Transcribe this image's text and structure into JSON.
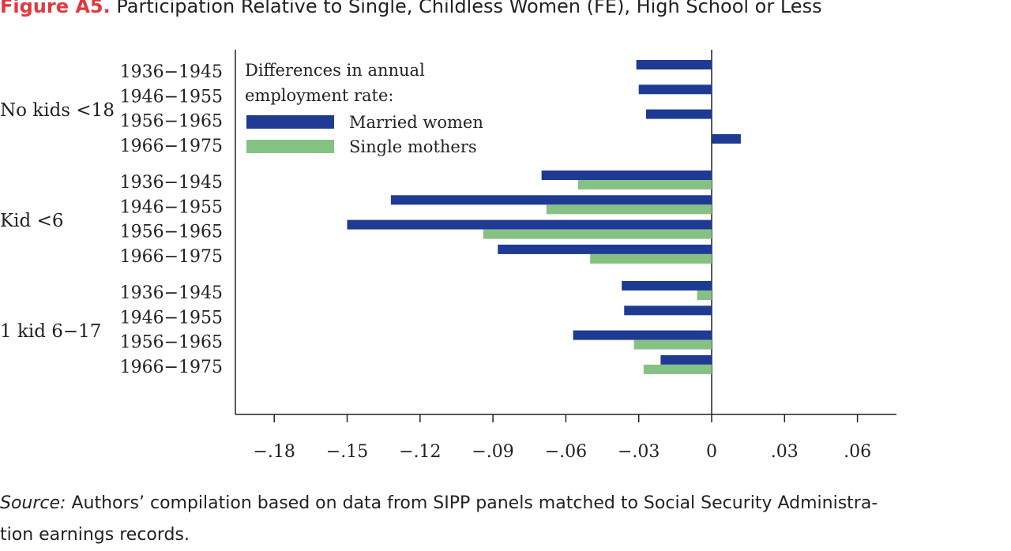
{
  "title": {
    "label": "Figure A5.",
    "text": "Participation Relative to Single, Childless Women (FE), High School or Less"
  },
  "source": {
    "label": "Source:",
    "text": "Authors’ compilation based on data from SIPP panels matched to Social Security Administra-",
    "text2": "tion earnings records."
  },
  "chart_data": {
    "type": "bar",
    "orientation": "horizontal",
    "legend": {
      "title_line1": "Differences in annual",
      "title_line2": "employment rate:",
      "placement": "top-left"
    },
    "xlim": [
      -0.21,
      0.08
    ],
    "xticks": [
      -0.18,
      -0.15,
      -0.12,
      -0.09,
      -0.06,
      -0.03,
      0,
      0.03,
      0.06
    ],
    "xtick_labels": [
      "−.18",
      "−.15",
      "−.12",
      "−.09",
      "−.06",
      "−.03",
      "0",
      ".03",
      ".06"
    ],
    "groups": [
      {
        "label": "No kids <18",
        "categories": [
          "1936−1945",
          "1946−1955",
          "1956−1965",
          "1966−1975"
        ],
        "married_women": [
          -0.031,
          -0.03,
          -0.027,
          0.012
        ],
        "single_mothers": [
          null,
          null,
          null,
          null
        ]
      },
      {
        "label": "Kid <6",
        "categories": [
          "1936−1945",
          "1946−1955",
          "1956−1965",
          "1966−1975"
        ],
        "married_women": [
          -0.07,
          -0.132,
          -0.15,
          -0.088
        ],
        "single_mothers": [
          -0.055,
          -0.068,
          -0.094,
          -0.05
        ]
      },
      {
        "label": "1 kid 6−17",
        "categories": [
          "1936−1945",
          "1946−1955",
          "1956−1965",
          "1966−1975"
        ],
        "married_women": [
          -0.037,
          -0.036,
          -0.057,
          -0.021
        ],
        "single_mothers": [
          -0.006,
          null,
          -0.032,
          -0.028
        ]
      }
    ],
    "series": [
      {
        "name": "Married women",
        "key": "married_women",
        "color": "#1f3a93"
      },
      {
        "name": "Single mothers",
        "key": "single_mothers",
        "color": "#86c184"
      }
    ]
  }
}
